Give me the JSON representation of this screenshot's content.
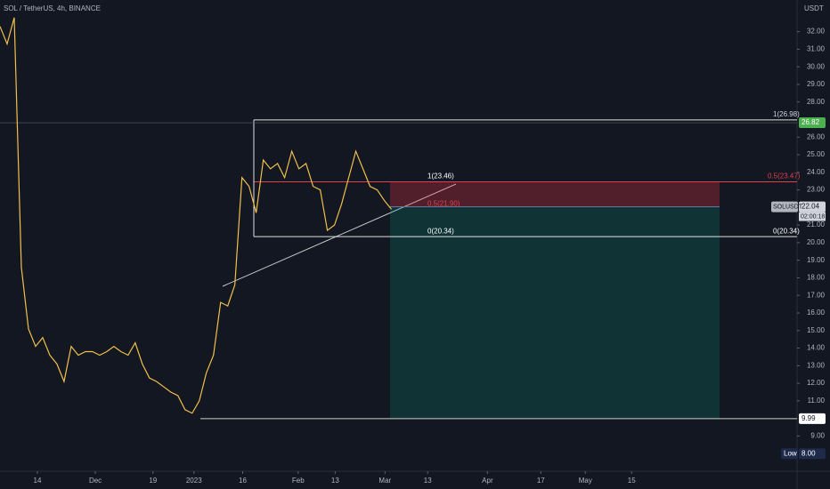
{
  "chart_data": {
    "type": "line",
    "title": "SOL / TetherUS, 4h, BINANCE",
    "y_axis_label": "USDT",
    "color": "#f0c04a",
    "values": [
      32.3,
      31.3,
      32.8,
      18.6,
      15.1,
      14.1,
      14.6,
      13.6,
      13.1,
      12.1,
      14.1,
      13.6,
      13.8,
      13.8,
      13.6,
      13.8,
      14.1,
      13.8,
      13.6,
      14.3,
      13.1,
      12.3,
      12.1,
      11.8,
      11.5,
      11.3,
      10.5,
      10.3,
      11.0,
      12.6,
      13.6,
      16.6,
      16.4,
      17.6,
      23.7,
      23.2,
      21.7,
      24.7,
      24.2,
      24.5,
      23.7,
      25.2,
      24.2,
      24.5,
      23.2,
      23.0,
      20.7,
      21.0,
      22.2,
      23.7,
      25.2,
      24.2,
      23.2,
      23.0,
      22.4,
      21.9
    ],
    "xlim": [
      0,
      112
    ],
    "xticks": [
      {
        "value": 5.25,
        "label": "14"
      },
      {
        "value": 13.4,
        "label": "Dec"
      },
      {
        "value": 21.5,
        "label": "19"
      },
      {
        "value": 27.25,
        "label": "2023"
      },
      {
        "value": 34.1,
        "label": "16"
      },
      {
        "value": 41.9,
        "label": "Feb"
      },
      {
        "value": 47.1,
        "label": "13"
      },
      {
        "value": 54.1,
        "label": "Mar"
      },
      {
        "value": 60.1,
        "label": "13"
      },
      {
        "value": 68.5,
        "label": "Apr"
      },
      {
        "value": 76,
        "label": "17"
      },
      {
        "value": 82.25,
        "label": "May"
      },
      {
        "value": 88.75,
        "label": "15"
      }
    ],
    "ylim": [
      7.0,
      33.8
    ],
    "yticks": [
      {
        "value": 32,
        "label": "32.00"
      },
      {
        "value": 31,
        "label": "31.00"
      },
      {
        "value": 30,
        "label": "30.00"
      },
      {
        "value": 29,
        "label": "29.00"
      },
      {
        "value": 28,
        "label": "28.00"
      },
      {
        "value": 26,
        "label": "26.00"
      },
      {
        "value": 25,
        "label": "25.00"
      },
      {
        "value": 24,
        "label": "24.00"
      },
      {
        "value": 23,
        "label": "23.00"
      },
      {
        "value": 21,
        "label": "21.00"
      },
      {
        "value": 20,
        "label": "20.00"
      },
      {
        "value": 19,
        "label": "19.00"
      },
      {
        "value": 18,
        "label": "18.00"
      },
      {
        "value": 17,
        "label": "17.00"
      },
      {
        "value": 16,
        "label": "16.00"
      },
      {
        "value": 15,
        "label": "15.00"
      },
      {
        "value": 14,
        "label": "14.00"
      },
      {
        "value": 13,
        "label": "13.00"
      },
      {
        "value": 12,
        "label": "12.00"
      },
      {
        "value": 11,
        "label": "11.00"
      },
      {
        "value": 9,
        "label": "9.00"
      }
    ],
    "annotations": [
      {
        "text": "1(26.98)",
        "value": 26.98
      },
      {
        "text": "0.5(23.47)",
        "value": 23.47
      },
      {
        "text": "1(23.46)",
        "value": 23.46
      },
      {
        "text": "0.5(21.90)",
        "value": 21.9
      },
      {
        "text": "0(20.34)",
        "value": 20.34
      },
      {
        "text": "0(20.34)",
        "value": 20.34
      }
    ],
    "badges": [
      {
        "value": 26.82,
        "label": "26.82",
        "color": "#4caf50"
      },
      {
        "value": 22.04,
        "label": "22.04",
        "color": "#d1d4dc"
      },
      {
        "value": 9.99,
        "label": "9.99",
        "color": "#ffffff"
      },
      {
        "value": 8.0,
        "label": "8.00",
        "color": "#1e2a4a"
      }
    ],
    "symbol_label": "SOLUSDT",
    "countdown": "02:00:18",
    "low_label": "Low"
  }
}
